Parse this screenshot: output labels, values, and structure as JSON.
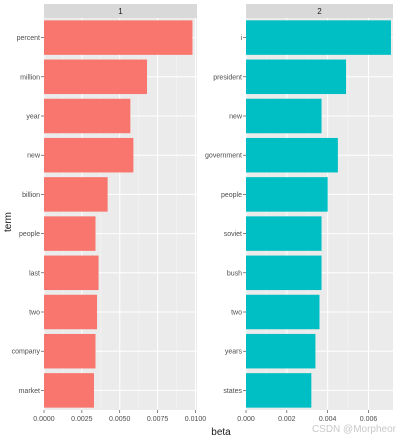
{
  "chart_data": {
    "type": "bar",
    "orientation": "horizontal",
    "xlabel": "beta",
    "ylabel": "term",
    "grid": true,
    "panels": [
      {
        "strip": "1",
        "color": "#F8766D",
        "xlim": [
          0,
          0.0101
        ],
        "xticks": [
          "0.0000",
          "0.0025",
          "0.0050",
          "0.0075",
          "0.0100"
        ],
        "xtick_values": [
          0,
          0.0025,
          0.005,
          0.0075,
          0.01
        ],
        "categories": [
          "percent",
          "million",
          "year",
          "new",
          "billion",
          "people",
          "last",
          "two",
          "company",
          "market"
        ],
        "values": [
          0.0098,
          0.0068,
          0.0057,
          0.0059,
          0.0042,
          0.0034,
          0.0036,
          0.0035,
          0.0034,
          0.0033
        ]
      },
      {
        "strip": "2",
        "color": "#00BFC4",
        "xlim": [
          0,
          0.0072
        ],
        "xticks": [
          "0.000",
          "0.002",
          "0.004",
          "0.006"
        ],
        "xtick_values": [
          0,
          0.002,
          0.004,
          0.006
        ],
        "categories": [
          "i",
          "president",
          "new",
          "government",
          "people",
          "soviet",
          "bush",
          "two",
          "years",
          "states"
        ],
        "values": [
          0.0071,
          0.0049,
          0.0037,
          0.0045,
          0.004,
          0.0037,
          0.0037,
          0.0036,
          0.0034,
          0.0032
        ]
      }
    ]
  },
  "watermark": "CSDN @Morpheor"
}
